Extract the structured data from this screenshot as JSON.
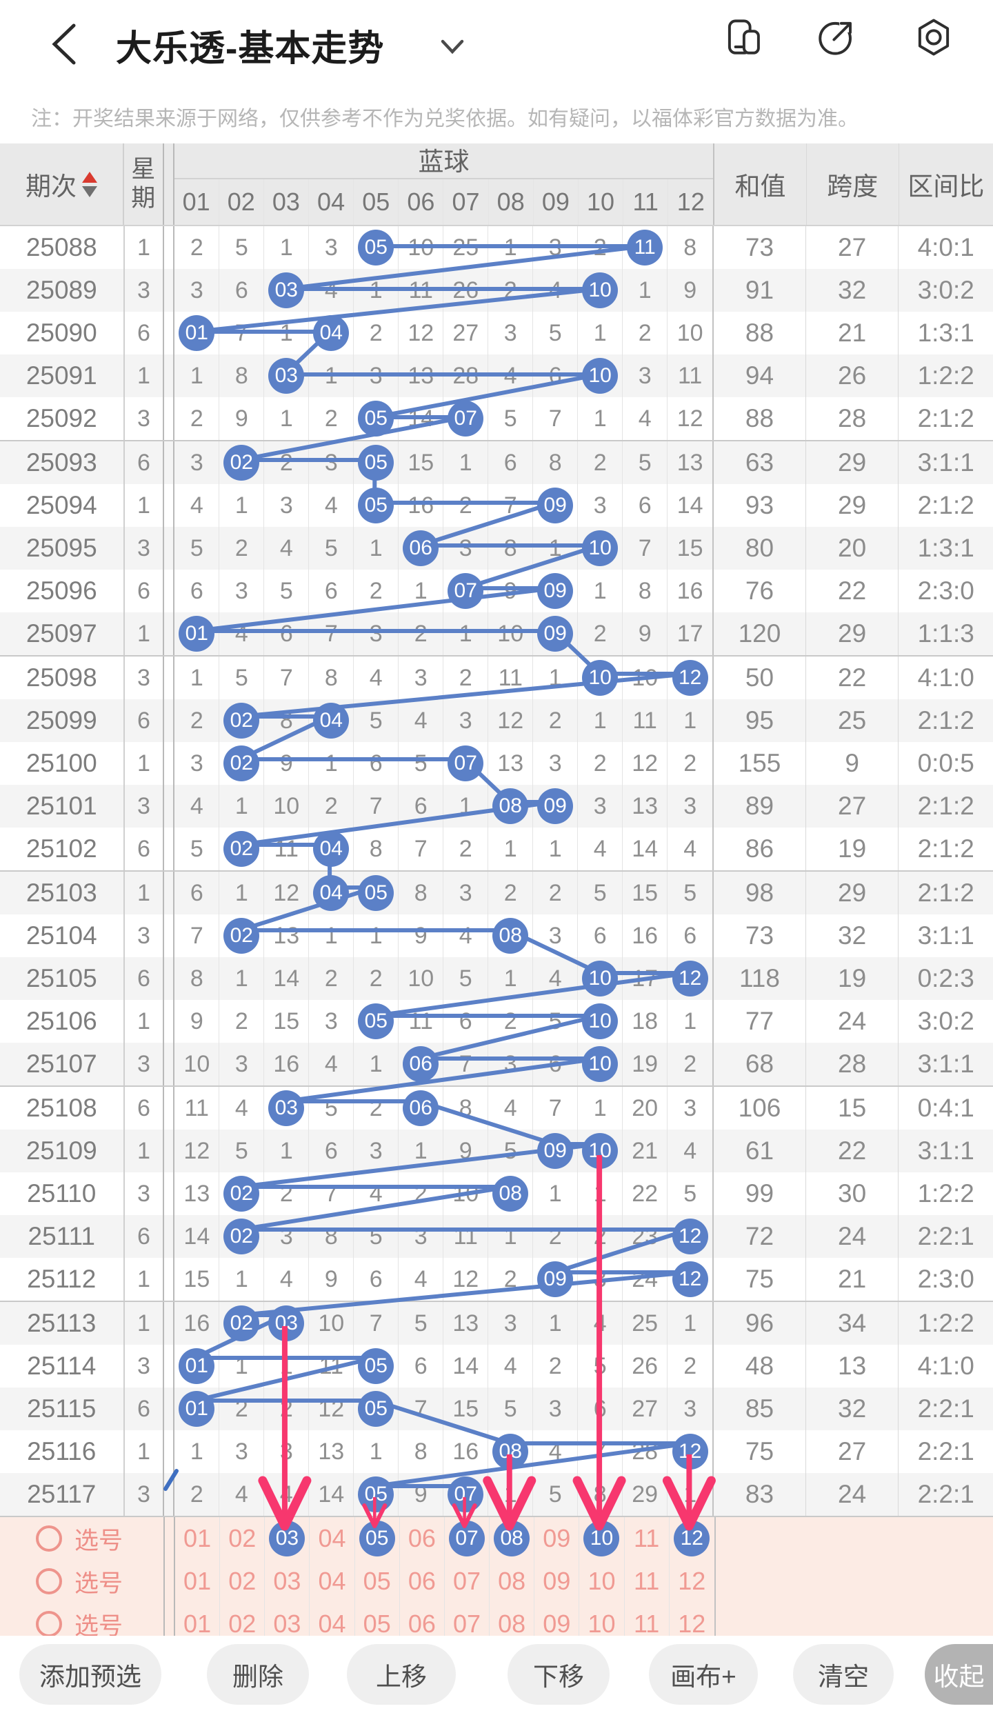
{
  "app": {
    "title": "大乐透-基本走势",
    "notice": "注：开奖结果来源于网络，仅供参考不作为兑奖依据。如有疑问，以福体彩官方数据为准。"
  },
  "header_icons": [
    "multi-window-icon",
    "share-icon",
    "settings-icon"
  ],
  "table": {
    "headers": {
      "period": "期次",
      "week": [
        "星",
        "期"
      ],
      "blue_zone": "蓝球",
      "sum": "和值",
      "span": "跨度",
      "ratio": "区间比",
      "balls": [
        "01",
        "02",
        "03",
        "04",
        "05",
        "06",
        "07",
        "08",
        "09",
        "10",
        "11",
        "12"
      ]
    },
    "rows": [
      {
        "period": "25088",
        "week": "1",
        "cells": [
          "2",
          "5",
          "1",
          "3",
          "05",
          "10",
          "25",
          "1",
          "3",
          "2",
          "11",
          "8"
        ],
        "hits": [
          5,
          11
        ],
        "sum": "73",
        "span": "27",
        "ratio": "4:0:1"
      },
      {
        "period": "25089",
        "week": "3",
        "cells": [
          "3",
          "6",
          "03",
          "4",
          "1",
          "11",
          "26",
          "2",
          "4",
          "10",
          "1",
          "9"
        ],
        "hits": [
          3,
          10
        ],
        "sum": "91",
        "span": "32",
        "ratio": "3:0:2"
      },
      {
        "period": "25090",
        "week": "6",
        "cells": [
          "01",
          "7",
          "1",
          "04",
          "2",
          "12",
          "27",
          "3",
          "5",
          "1",
          "2",
          "10"
        ],
        "hits": [
          1,
          4
        ],
        "sum": "88",
        "span": "21",
        "ratio": "1:3:1"
      },
      {
        "period": "25091",
        "week": "1",
        "cells": [
          "1",
          "8",
          "03",
          "1",
          "3",
          "13",
          "28",
          "4",
          "6",
          "10",
          "3",
          "11"
        ],
        "hits": [
          3,
          10
        ],
        "sum": "94",
        "span": "26",
        "ratio": "1:2:2"
      },
      {
        "period": "25092",
        "week": "3",
        "cells": [
          "2",
          "9",
          "1",
          "2",
          "05",
          "14",
          "07",
          "5",
          "7",
          "1",
          "4",
          "12"
        ],
        "hits": [
          5,
          7
        ],
        "sum": "88",
        "span": "28",
        "ratio": "2:1:2"
      },
      {
        "period": "25093",
        "week": "6",
        "cells": [
          "3",
          "02",
          "2",
          "3",
          "05",
          "15",
          "1",
          "6",
          "8",
          "2",
          "5",
          "13"
        ],
        "hits": [
          2,
          5
        ],
        "sum": "63",
        "span": "29",
        "ratio": "3:1:1"
      },
      {
        "period": "25094",
        "week": "1",
        "cells": [
          "4",
          "1",
          "3",
          "4",
          "05",
          "16",
          "2",
          "7",
          "09",
          "3",
          "6",
          "14"
        ],
        "hits": [
          5,
          9
        ],
        "sum": "93",
        "span": "29",
        "ratio": "2:1:2"
      },
      {
        "period": "25095",
        "week": "3",
        "cells": [
          "5",
          "2",
          "4",
          "5",
          "1",
          "06",
          "3",
          "8",
          "1",
          "10",
          "7",
          "15"
        ],
        "hits": [
          6,
          10
        ],
        "sum": "80",
        "span": "20",
        "ratio": "1:3:1"
      },
      {
        "period": "25096",
        "week": "6",
        "cells": [
          "6",
          "3",
          "5",
          "6",
          "2",
          "1",
          "07",
          "9",
          "09",
          "1",
          "8",
          "16"
        ],
        "hits": [
          7,
          9
        ],
        "sum": "76",
        "span": "22",
        "ratio": "2:3:0"
      },
      {
        "period": "25097",
        "week": "1",
        "cells": [
          "01",
          "4",
          "6",
          "7",
          "3",
          "2",
          "1",
          "10",
          "09",
          "2",
          "9",
          "17"
        ],
        "hits": [
          1,
          9
        ],
        "sum": "120",
        "span": "29",
        "ratio": "1:1:3"
      },
      {
        "period": "25098",
        "week": "3",
        "cells": [
          "1",
          "5",
          "7",
          "8",
          "4",
          "3",
          "2",
          "11",
          "1",
          "10",
          "10",
          "12"
        ],
        "hits": [
          10,
          12
        ],
        "sum": "50",
        "span": "22",
        "ratio": "4:1:0"
      },
      {
        "period": "25099",
        "week": "6",
        "cells": [
          "2",
          "02",
          "8",
          "04",
          "5",
          "4",
          "3",
          "12",
          "2",
          "1",
          "11",
          "1"
        ],
        "hits": [
          2,
          4
        ],
        "sum": "95",
        "span": "25",
        "ratio": "2:1:2"
      },
      {
        "period": "25100",
        "week": "1",
        "cells": [
          "3",
          "02",
          "9",
          "1",
          "6",
          "5",
          "07",
          "13",
          "3",
          "2",
          "12",
          "2"
        ],
        "hits": [
          2,
          7
        ],
        "sum": "155",
        "span": "9",
        "ratio": "0:0:5"
      },
      {
        "period": "25101",
        "week": "3",
        "cells": [
          "4",
          "1",
          "10",
          "2",
          "7",
          "6",
          "1",
          "08",
          "09",
          "3",
          "13",
          "3"
        ],
        "hits": [
          8,
          9
        ],
        "sum": "89",
        "span": "27",
        "ratio": "2:1:2"
      },
      {
        "period": "25102",
        "week": "6",
        "cells": [
          "5",
          "02",
          "11",
          "04",
          "8",
          "7",
          "2",
          "1",
          "1",
          "4",
          "14",
          "4"
        ],
        "hits": [
          2,
          4
        ],
        "sum": "86",
        "span": "19",
        "ratio": "2:1:2"
      },
      {
        "period": "25103",
        "week": "1",
        "cells": [
          "6",
          "1",
          "12",
          "04",
          "05",
          "8",
          "3",
          "2",
          "2",
          "5",
          "15",
          "5"
        ],
        "hits": [
          4,
          5
        ],
        "sum": "98",
        "span": "29",
        "ratio": "2:1:2"
      },
      {
        "period": "25104",
        "week": "3",
        "cells": [
          "7",
          "02",
          "13",
          "1",
          "1",
          "9",
          "4",
          "08",
          "3",
          "6",
          "16",
          "6"
        ],
        "hits": [
          2,
          8
        ],
        "sum": "73",
        "span": "32",
        "ratio": "3:1:1"
      },
      {
        "period": "25105",
        "week": "6",
        "cells": [
          "8",
          "1",
          "14",
          "2",
          "2",
          "10",
          "5",
          "1",
          "4",
          "10",
          "17",
          "12"
        ],
        "hits": [
          10,
          12
        ],
        "sum": "118",
        "span": "19",
        "ratio": "0:2:3"
      },
      {
        "period": "25106",
        "week": "1",
        "cells": [
          "9",
          "2",
          "15",
          "3",
          "05",
          "11",
          "6",
          "2",
          "5",
          "10",
          "18",
          "1"
        ],
        "hits": [
          5,
          10
        ],
        "sum": "77",
        "span": "24",
        "ratio": "3:0:2"
      },
      {
        "period": "25107",
        "week": "3",
        "cells": [
          "10",
          "3",
          "16",
          "4",
          "1",
          "06",
          "7",
          "3",
          "6",
          "10",
          "19",
          "2"
        ],
        "hits": [
          6,
          10
        ],
        "sum": "68",
        "span": "28",
        "ratio": "3:1:1"
      },
      {
        "period": "25108",
        "week": "6",
        "cells": [
          "11",
          "4",
          "03",
          "5",
          "2",
          "06",
          "8",
          "4",
          "7",
          "1",
          "20",
          "3"
        ],
        "hits": [
          3,
          6
        ],
        "sum": "106",
        "span": "15",
        "ratio": "0:4:1"
      },
      {
        "period": "25109",
        "week": "1",
        "cells": [
          "12",
          "5",
          "1",
          "6",
          "3",
          "1",
          "9",
          "5",
          "09",
          "10",
          "21",
          "4"
        ],
        "hits": [
          9,
          10
        ],
        "sum": "61",
        "span": "22",
        "ratio": "3:1:1"
      },
      {
        "period": "25110",
        "week": "3",
        "cells": [
          "13",
          "02",
          "2",
          "7",
          "4",
          "2",
          "10",
          "08",
          "1",
          "1",
          "22",
          "5"
        ],
        "hits": [
          2,
          8
        ],
        "sum": "99",
        "span": "30",
        "ratio": "1:2:2"
      },
      {
        "period": "25111",
        "week": "6",
        "cells": [
          "14",
          "02",
          "3",
          "8",
          "5",
          "3",
          "11",
          "1",
          "2",
          "2",
          "23",
          "12"
        ],
        "hits": [
          2,
          12
        ],
        "sum": "72",
        "span": "24",
        "ratio": "2:2:1"
      },
      {
        "period": "25112",
        "week": "1",
        "cells": [
          "15",
          "1",
          "4",
          "9",
          "6",
          "4",
          "12",
          "2",
          "09",
          "3",
          "24",
          "12"
        ],
        "hits": [
          9,
          12
        ],
        "sum": "75",
        "span": "21",
        "ratio": "2:3:0"
      },
      {
        "period": "25113",
        "week": "1",
        "cells": [
          "16",
          "02",
          "03",
          "10",
          "7",
          "5",
          "13",
          "3",
          "1",
          "4",
          "25",
          "1"
        ],
        "hits": [
          2,
          3
        ],
        "sum": "96",
        "span": "34",
        "ratio": "1:2:2"
      },
      {
        "period": "25114",
        "week": "3",
        "cells": [
          "01",
          "1",
          "1",
          "11",
          "05",
          "6",
          "14",
          "4",
          "2",
          "5",
          "26",
          "2"
        ],
        "hits": [
          1,
          5
        ],
        "sum": "48",
        "span": "13",
        "ratio": "4:1:0"
      },
      {
        "period": "25115",
        "week": "6",
        "cells": [
          "01",
          "2",
          "2",
          "12",
          "05",
          "7",
          "15",
          "5",
          "3",
          "6",
          "27",
          "3"
        ],
        "hits": [
          1,
          5
        ],
        "sum": "85",
        "span": "32",
        "ratio": "2:2:1"
      },
      {
        "period": "25116",
        "week": "1",
        "cells": [
          "1",
          "3",
          "3",
          "13",
          "1",
          "8",
          "16",
          "08",
          "4",
          "7",
          "28",
          "12"
        ],
        "hits": [
          8,
          12
        ],
        "sum": "75",
        "span": "27",
        "ratio": "2:2:1"
      },
      {
        "period": "25117",
        "week": "3",
        "cells": [
          "2",
          "4",
          "4",
          "14",
          "05",
          "9",
          "07",
          "1",
          "5",
          "8",
          "29",
          "1"
        ],
        "hits": [
          5,
          7
        ],
        "sum": "83",
        "span": "24",
        "ratio": "2:2:1"
      }
    ]
  },
  "selection": {
    "label": "选号",
    "numbers": [
      "01",
      "02",
      "03",
      "04",
      "05",
      "06",
      "07",
      "08",
      "09",
      "10",
      "11",
      "12"
    ],
    "rows": [
      {
        "selected": [
          3,
          5,
          7,
          8,
          10,
          12
        ]
      },
      {
        "selected": []
      },
      {
        "selected": []
      }
    ]
  },
  "annotations": {
    "arrows": [
      {
        "col": 3,
        "from_period": "25113",
        "style": "bold"
      },
      {
        "col": 5,
        "from_period": "25117",
        "style": "thin"
      },
      {
        "col": 7,
        "from_period": "25117",
        "style": "thin"
      },
      {
        "col": 8,
        "from_period": "25116",
        "style": "bold"
      },
      {
        "col": 10,
        "from_period": "25109",
        "style": "bold"
      },
      {
        "col": 12,
        "from_period": "25116",
        "style": "bold"
      }
    ]
  },
  "toolbar": {
    "buttons": [
      "添加预选",
      "删除",
      "上移",
      "下移",
      "画布+",
      "清空",
      "收起"
    ]
  },
  "colors": {
    "ball_blue": "#5b80c7",
    "arrow_pink": "#f7376e",
    "selection_bg": "#fcebe4",
    "selection_text": "#f09a93",
    "sort_up_red": "#d93a2f"
  }
}
